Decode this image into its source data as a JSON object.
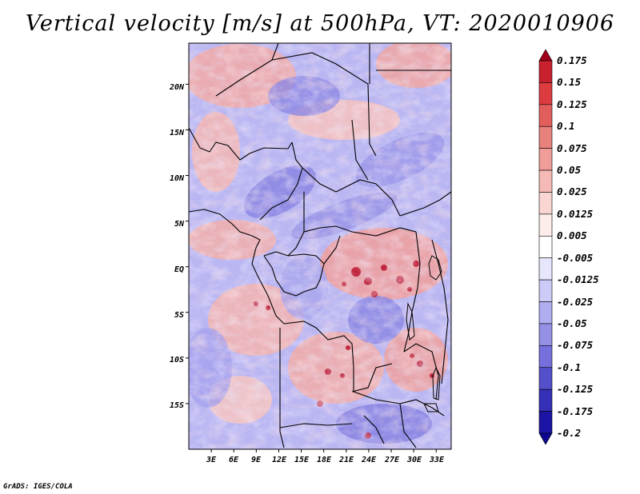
{
  "title": "Vertical velocity [m/s] at 500hPa, VT: 2020010906",
  "map": {
    "lat_labels": [
      "20N",
      "15N",
      "10N",
      "5N",
      "EQ",
      "5S",
      "10S",
      "15S"
    ],
    "lon_labels": [
      "3E",
      "6E",
      "9E",
      "12E",
      "15E",
      "18E",
      "21E",
      "24E",
      "27E",
      "30E",
      "33E"
    ],
    "lat_values": [
      20,
      15,
      10,
      5,
      0,
      -5,
      -10,
      -15
    ],
    "lon_values": [
      3,
      6,
      9,
      12,
      15,
      18,
      21,
      24,
      27,
      30,
      33
    ],
    "extent": {
      "lon_min": 0,
      "lon_max": 35,
      "lat_min": -20,
      "lat_max": 24.5
    }
  },
  "colorbar": {
    "labels": [
      "0.175",
      "0.15",
      "0.125",
      "0.1",
      "0.075",
      "0.05",
      "0.025",
      "0.0125",
      "0.005",
      "-0.005",
      "-0.0125",
      "-0.025",
      "-0.05",
      "-0.075",
      "-0.1",
      "-0.125",
      "-0.175",
      "-0.2"
    ],
    "colors": [
      "#a00018",
      "#c8202e",
      "#dc3c40",
      "#e25e5c",
      "#e8807c",
      "#f09c98",
      "#f6bab6",
      "#fad6d2",
      "#fcecea",
      "#ffffff",
      "#e6e6fc",
      "#cccaf6",
      "#b0acf0",
      "#9490e6",
      "#7670dc",
      "#5450cc",
      "#3430b8",
      "#1c14a4",
      "#0e0690"
    ]
  },
  "credit": "GrADS: IGES/COLA"
}
